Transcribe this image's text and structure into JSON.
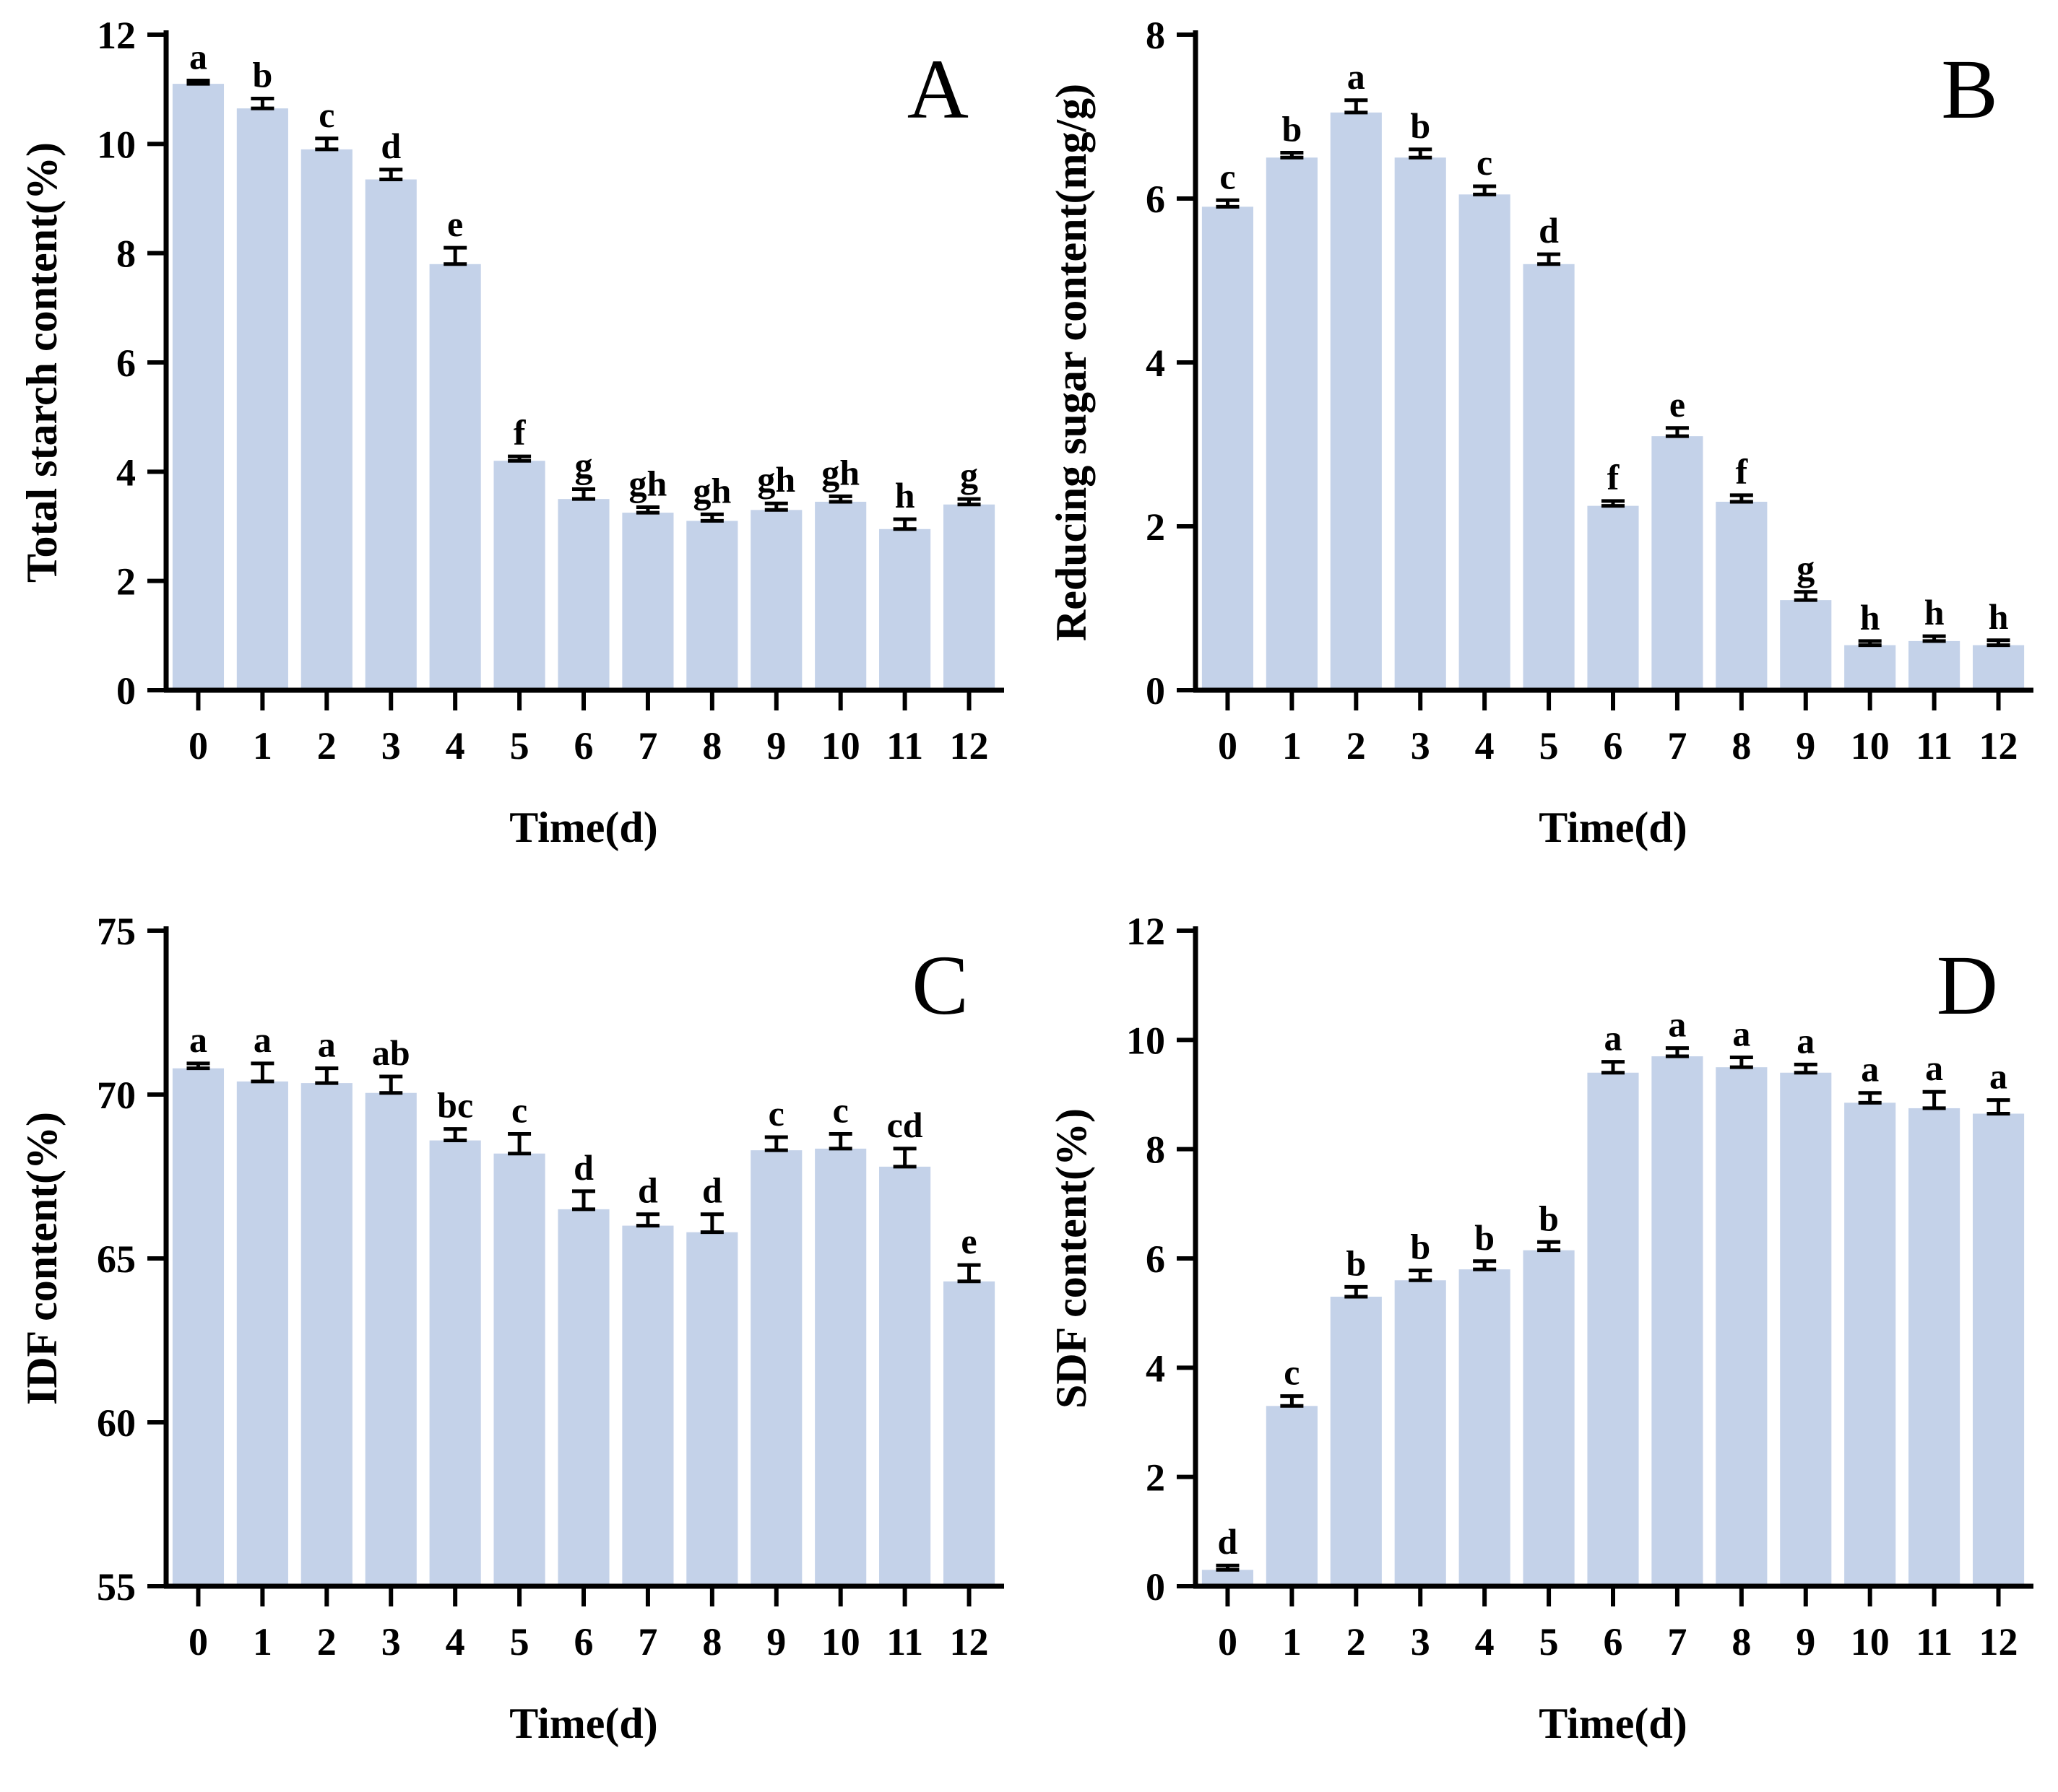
{
  "figure": {
    "background": "#ffffff",
    "bar_color": "#c4d2e9",
    "axis_color": "#000000",
    "x_axis_label": "Time(d)",
    "categories": [
      "0",
      "1",
      "2",
      "3",
      "4",
      "5",
      "6",
      "7",
      "8",
      "9",
      "10",
      "11",
      "12"
    ]
  },
  "chart_data": [
    {
      "type": "bar",
      "panel_label": "A",
      "title": "",
      "xlabel": "Time(d)",
      "ylabel": "Total starch content(%)",
      "ylim": [
        0,
        12
      ],
      "ytick_step": 2,
      "ytick_labels": [
        "0",
        "2",
        "4",
        "6",
        "8",
        "10",
        "12"
      ],
      "grid": false,
      "legend": "none",
      "categories": [
        "0",
        "1",
        "2",
        "3",
        "4",
        "5",
        "6",
        "7",
        "8",
        "9",
        "10",
        "11",
        "12"
      ],
      "values": [
        11.1,
        10.65,
        9.9,
        9.35,
        7.8,
        4.2,
        3.5,
        3.25,
        3.1,
        3.3,
        3.45,
        2.95,
        3.4
      ],
      "errors": [
        0.06,
        0.18,
        0.2,
        0.18,
        0.3,
        0.08,
        0.18,
        0.1,
        0.12,
        0.12,
        0.1,
        0.18,
        0.1
      ],
      "sig_letters": [
        "a",
        "b",
        "c",
        "d",
        "e",
        "f",
        "g",
        "gh",
        "gh",
        "gh",
        "gh",
        "h",
        "g"
      ]
    },
    {
      "type": "bar",
      "panel_label": "B",
      "title": "",
      "xlabel": "Time(d)",
      "ylabel": "Reducing sugar content(mg/g)",
      "ylim": [
        0,
        8
      ],
      "ytick_step": 2,
      "ytick_labels": [
        "0",
        "2",
        "4",
        "6",
        "8"
      ],
      "grid": false,
      "legend": "none",
      "categories": [
        "0",
        "1",
        "2",
        "3",
        "4",
        "5",
        "6",
        "7",
        "8",
        "9",
        "10",
        "11",
        "12"
      ],
      "values": [
        5.9,
        6.5,
        7.05,
        6.5,
        6.05,
        5.2,
        2.25,
        3.1,
        2.3,
        1.1,
        0.55,
        0.6,
        0.55
      ],
      "errors": [
        0.08,
        0.06,
        0.15,
        0.1,
        0.1,
        0.12,
        0.06,
        0.1,
        0.08,
        0.1,
        0.05,
        0.06,
        0.06
      ],
      "sig_letters": [
        "c",
        "b",
        "a",
        "b",
        "c",
        "d",
        "f",
        "e",
        "f",
        "g",
        "h",
        "h",
        "h"
      ]
    },
    {
      "type": "bar",
      "panel_label": "C",
      "title": "",
      "xlabel": "Time(d)",
      "ylabel": "IDF content(%)",
      "ylim": [
        55,
        75
      ],
      "ytick_step": 5,
      "ytick_labels": [
        "55",
        "60",
        "65",
        "70",
        "75"
      ],
      "grid": false,
      "legend": "none",
      "categories": [
        "0",
        "1",
        "2",
        "3",
        "4",
        "5",
        "6",
        "7",
        "8",
        "9",
        "10",
        "11",
        "12"
      ],
      "values": [
        70.8,
        70.4,
        70.35,
        70.05,
        68.6,
        68.2,
        66.5,
        66.0,
        65.8,
        68.3,
        68.35,
        67.8,
        64.3
      ],
      "errors": [
        0.15,
        0.55,
        0.45,
        0.5,
        0.35,
        0.6,
        0.55,
        0.35,
        0.55,
        0.4,
        0.45,
        0.55,
        0.5
      ],
      "sig_letters": [
        "a",
        "a",
        "a",
        "ab",
        "bc",
        "c",
        "d",
        "d",
        "d",
        "c",
        "c",
        "cd",
        "e"
      ]
    },
    {
      "type": "bar",
      "panel_label": "D",
      "title": "",
      "xlabel": "Time(d)",
      "ylabel": "SDF content(%)",
      "ylim": [
        0,
        12
      ],
      "ytick_step": 2,
      "ytick_labels": [
        "0",
        "2",
        "4",
        "6",
        "8",
        "10",
        "12"
      ],
      "grid": false,
      "legend": "none",
      "categories": [
        "0",
        "1",
        "2",
        "3",
        "4",
        "5",
        "6",
        "7",
        "8",
        "9",
        "10",
        "11",
        "12"
      ],
      "values": [
        0.3,
        3.3,
        5.3,
        5.6,
        5.8,
        6.15,
        9.4,
        9.7,
        9.5,
        9.4,
        8.85,
        8.75,
        8.65
      ],
      "errors": [
        0.08,
        0.18,
        0.18,
        0.18,
        0.15,
        0.15,
        0.2,
        0.15,
        0.18,
        0.15,
        0.18,
        0.3,
        0.25
      ],
      "sig_letters": [
        "d",
        "c",
        "b",
        "b",
        "b",
        "b",
        "a",
        "a",
        "a",
        "a",
        "a",
        "a",
        "a"
      ]
    }
  ]
}
